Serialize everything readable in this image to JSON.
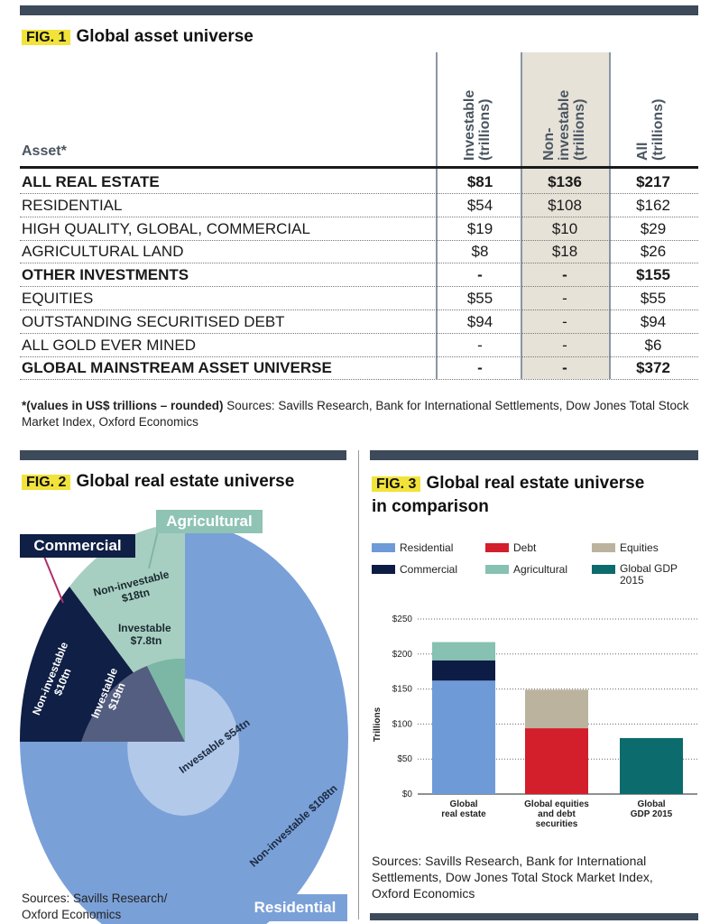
{
  "fig1": {
    "tag": "FIG. 1",
    "title": "Global asset universe",
    "asset_header": "Asset*",
    "columns": [
      "Investable (trillions)",
      "Non-investable (trillions)",
      "All (trillions)"
    ],
    "col_lines": [
      [
        "Investable",
        "(trillions)"
      ],
      [
        "Non-",
        "investable",
        "(trillions)"
      ],
      [
        "All",
        "(trillions)"
      ]
    ],
    "rows": [
      {
        "label": "ALL REAL ESTATE",
        "bold": true,
        "investable": "$81",
        "non_investable": "$136",
        "all": "$217"
      },
      {
        "label": "RESIDENTIAL",
        "bold": false,
        "investable": "$54",
        "non_investable": "$108",
        "all": "$162"
      },
      {
        "label": "HIGH QUALITY, GLOBAL, COMMERCIAL",
        "bold": false,
        "investable": "$19",
        "non_investable": "$10",
        "all": "$29"
      },
      {
        "label": "AGRICULTURAL LAND",
        "bold": false,
        "investable": "$8",
        "non_investable": "$18",
        "all": "$26"
      },
      {
        "label": "OTHER INVESTMENTS",
        "bold": true,
        "investable": "-",
        "non_investable": "-",
        "all": "$155"
      },
      {
        "label": "EQUITIES",
        "bold": false,
        "investable": "$55",
        "non_investable": "-",
        "all": "$55"
      },
      {
        "label": "OUTSTANDING SECURITISED DEBT",
        "bold": false,
        "investable": "$94",
        "non_investable": "-",
        "all": "$94"
      },
      {
        "label": "ALL GOLD EVER MINED",
        "bold": false,
        "investable": "-",
        "non_investable": "-",
        "all": "$6"
      },
      {
        "label": "GLOBAL MAINSTREAM ASSET UNIVERSE",
        "bold": true,
        "investable": "-",
        "non_investable": "-",
        "all": "$372"
      }
    ],
    "note_bold": "*(values in US$ trillions – rounded)",
    "note_rest": " Sources: Savills Research, Bank for International Settlements, Dow Jones Total Stock Market Index, Oxford Economics"
  },
  "fig2": {
    "tag": "FIG. 2",
    "title": "Global real estate universe",
    "label_agricultural": "Agricultural",
    "label_commercial": "Commercial",
    "label_residential": "Residential",
    "slices": {
      "agri_noninv": [
        "Non-investable",
        "$18tn"
      ],
      "agri_inv": [
        "Investable",
        "$7.8tn"
      ],
      "comm_noninv": [
        "Non-investable",
        "$10tn"
      ],
      "comm_inv": [
        "Investable",
        "$19tn"
      ],
      "res_inv": "Investable $54tn",
      "res_noninv": "Non-investable $108tn"
    },
    "sources": [
      "Sources: Savills Research/",
      "Oxford Economics"
    ],
    "colors": {
      "residential_outer": "#7aa0d8",
      "residential_inner": "#b3c9ea",
      "commercial_outer": "#0f1f45",
      "commercial_inner": "#545e80",
      "agri_outer": "#a7cfc1",
      "agri_inner": "#7bb7a4"
    }
  },
  "fig3": {
    "tag": "FIG. 3",
    "title_lines": [
      "Global real estate universe",
      "in comparison"
    ],
    "legend": [
      {
        "label": "Residential",
        "color": "#6e9bd8"
      },
      {
        "label": "Debt",
        "color": "#d21f2b"
      },
      {
        "label": "Equities",
        "color": "#bbb39d"
      },
      {
        "label": "Commercial",
        "color": "#0c1c44"
      },
      {
        "label": "Agricultural",
        "color": "#86c1b1"
      },
      {
        "label": "Global GDP 2015",
        "color": "#0c6b6c"
      }
    ],
    "sources": [
      "Sources: Savills Research, Bank for International",
      "Settlements, Dow Jones Total Stock Market Index,",
      "Oxford Economics"
    ]
  },
  "chart_data": {
    "type": "bar",
    "stacked": true,
    "title": "Global real estate universe in comparison",
    "xlabel": "",
    "ylabel": "Trillions",
    "ylim": [
      0,
      250
    ],
    "yticks": [
      "$0",
      "$50",
      "$100",
      "$150",
      "$200",
      "$250"
    ],
    "ytick_values": [
      0,
      50,
      100,
      150,
      200,
      250
    ],
    "categories": [
      [
        "Global",
        "real estate"
      ],
      [
        "Global equities",
        "and debt",
        "securities"
      ],
      [
        "Global",
        "GDP 2015"
      ]
    ],
    "series": [
      {
        "name": "Residential",
        "color": "#6e9bd8",
        "values": [
          162,
          0,
          0
        ]
      },
      {
        "name": "Commercial",
        "color": "#0c1c44",
        "values": [
          29,
          0,
          0
        ]
      },
      {
        "name": "Agricultural",
        "color": "#86c1b1",
        "values": [
          26,
          0,
          0
        ]
      },
      {
        "name": "Debt",
        "color": "#d21f2b",
        "values": [
          0,
          94,
          0
        ]
      },
      {
        "name": "Equities",
        "color": "#bbb39d",
        "values": [
          0,
          55,
          0
        ]
      },
      {
        "name": "Global GDP 2015",
        "color": "#0c6b6c",
        "values": [
          0,
          0,
          80
        ]
      }
    ]
  }
}
